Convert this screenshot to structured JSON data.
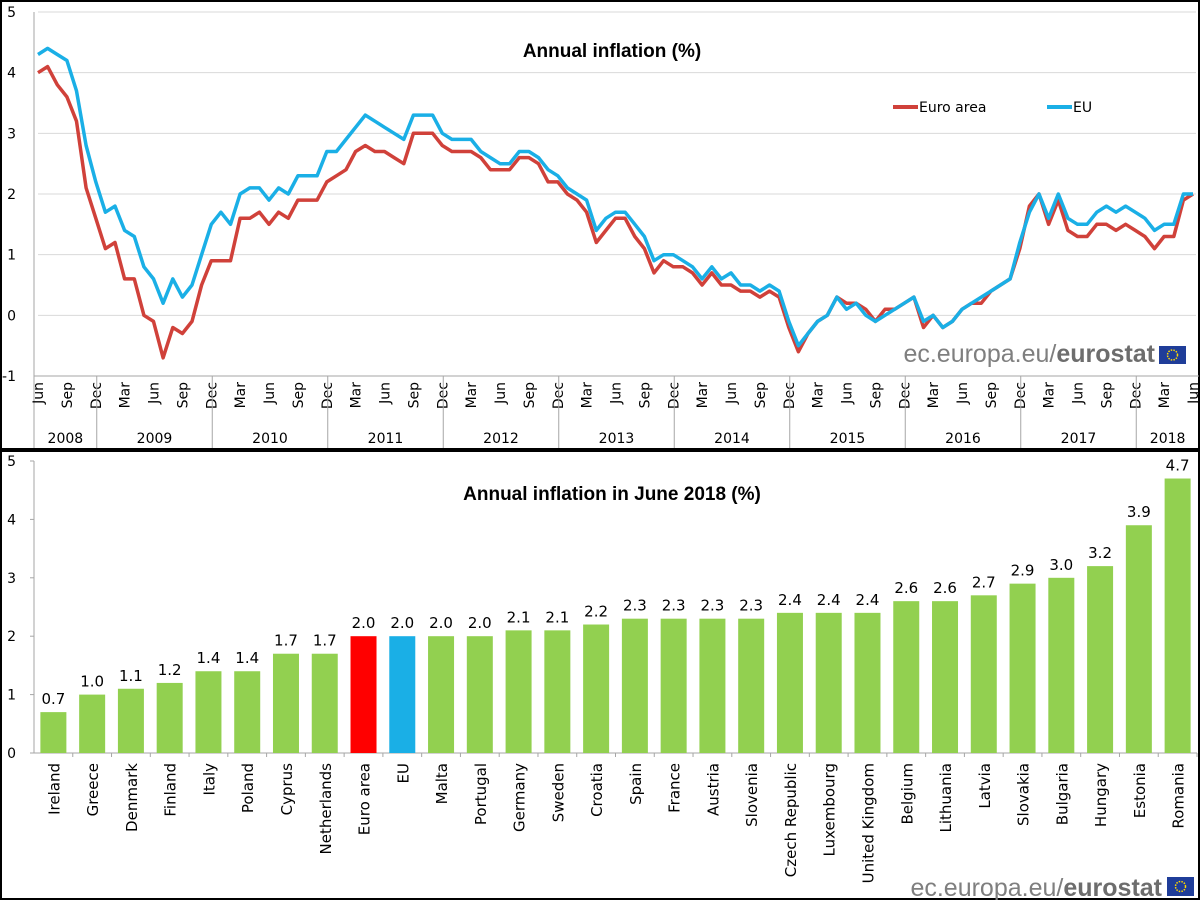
{
  "logo_text": {
    "domain": "ec.europa.eu/",
    "brand": "eurostat"
  },
  "chart_data": [
    {
      "type": "line",
      "title": "Annual inflation (%)",
      "xlabel": "",
      "ylabel": "",
      "ylim": [
        -1,
        5
      ],
      "yticks": [
        "5",
        "4",
        "3",
        "2",
        "1",
        "0",
        "-1"
      ],
      "grid": true,
      "legend": "top-right",
      "x_range": [
        "2008-06",
        "2018-06"
      ],
      "frequency": "monthly",
      "month_ticks": [
        "Jun",
        "Sep",
        "Dec",
        "Mar",
        "Jun",
        "Sep",
        "Dec",
        "Mar",
        "Jun",
        "Sep",
        "Dec",
        "Mar",
        "Jun",
        "Sep",
        "Dec",
        "Mar",
        "Jun",
        "Sep",
        "Dec",
        "Mar",
        "Jun",
        "Sep",
        "Dec",
        "Mar",
        "Jun",
        "Sep",
        "Dec",
        "Mar",
        "Jun",
        "Sep",
        "Dec",
        "Mar",
        "Jun",
        "Sep",
        "Dec",
        "Mar",
        "Jun",
        "Sep",
        "Dec",
        "Mar",
        "Jun"
      ],
      "year_labels": [
        "2008",
        "2009",
        "2010",
        "2011",
        "2012",
        "2013",
        "2014",
        "2015",
        "2016",
        "2017",
        "2018"
      ],
      "series": [
        {
          "name": "Euro area",
          "color": "#d0413a",
          "values": [
            4.0,
            4.1,
            3.8,
            3.6,
            3.2,
            2.1,
            1.6,
            1.1,
            1.2,
            0.6,
            0.6,
            0.0,
            -0.1,
            -0.7,
            -0.2,
            -0.3,
            -0.1,
            0.5,
            0.9,
            0.9,
            0.9,
            1.6,
            1.6,
            1.7,
            1.5,
            1.7,
            1.6,
            1.9,
            1.9,
            1.9,
            2.2,
            2.3,
            2.4,
            2.7,
            2.8,
            2.7,
            2.7,
            2.6,
            2.5,
            3.0,
            3.0,
            3.0,
            2.8,
            2.7,
            2.7,
            2.7,
            2.6,
            2.4,
            2.4,
            2.4,
            2.6,
            2.6,
            2.5,
            2.2,
            2.2,
            2.0,
            1.9,
            1.7,
            1.2,
            1.4,
            1.6,
            1.6,
            1.3,
            1.1,
            0.7,
            0.9,
            0.8,
            0.8,
            0.7,
            0.5,
            0.7,
            0.5,
            0.5,
            0.4,
            0.4,
            0.3,
            0.4,
            0.3,
            -0.2,
            -0.6,
            -0.3,
            -0.1,
            0.0,
            0.3,
            0.2,
            0.2,
            0.1,
            -0.1,
            0.1,
            0.1,
            0.2,
            0.3,
            -0.2,
            0.0,
            -0.2,
            -0.1,
            0.1,
            0.2,
            0.2,
            0.4,
            0.5,
            0.6,
            1.1,
            1.8,
            2.0,
            1.5,
            1.9,
            1.4,
            1.3,
            1.3,
            1.5,
            1.5,
            1.4,
            1.5,
            1.4,
            1.3,
            1.1,
            1.3,
            1.3,
            1.9,
            2.0
          ]
        },
        {
          "name": "EU",
          "color": "#1aafe6",
          "values": [
            4.3,
            4.4,
            4.3,
            4.2,
            3.7,
            2.8,
            2.2,
            1.7,
            1.8,
            1.4,
            1.3,
            0.8,
            0.6,
            0.2,
            0.6,
            0.3,
            0.5,
            1.0,
            1.5,
            1.7,
            1.5,
            2.0,
            2.1,
            2.1,
            1.9,
            2.1,
            2.0,
            2.3,
            2.3,
            2.3,
            2.7,
            2.7,
            2.9,
            3.1,
            3.3,
            3.2,
            3.1,
            3.0,
            2.9,
            3.3,
            3.3,
            3.3,
            3.0,
            2.9,
            2.9,
            2.9,
            2.7,
            2.6,
            2.5,
            2.5,
            2.7,
            2.7,
            2.6,
            2.4,
            2.3,
            2.1,
            2.0,
            1.9,
            1.4,
            1.6,
            1.7,
            1.7,
            1.5,
            1.3,
            0.9,
            1.0,
            1.0,
            0.9,
            0.8,
            0.6,
            0.8,
            0.6,
            0.7,
            0.5,
            0.5,
            0.4,
            0.5,
            0.4,
            -0.1,
            -0.5,
            -0.3,
            -0.1,
            0.0,
            0.3,
            0.1,
            0.2,
            0.0,
            -0.1,
            0.0,
            0.1,
            0.2,
            0.3,
            -0.1,
            0.0,
            -0.2,
            -0.1,
            0.1,
            0.2,
            0.3,
            0.4,
            0.5,
            0.6,
            1.2,
            1.7,
            2.0,
            1.6,
            2.0,
            1.6,
            1.5,
            1.5,
            1.7,
            1.8,
            1.7,
            1.8,
            1.7,
            1.6,
            1.4,
            1.5,
            1.5,
            2.0,
            2.0
          ]
        }
      ]
    },
    {
      "type": "bar",
      "title": "Annual inflation in June 2018 (%)",
      "xlabel": "",
      "ylabel": "",
      "ylim": [
        0,
        5
      ],
      "yticks": [
        "5",
        "4",
        "3",
        "2",
        "1",
        "0"
      ],
      "grid": false,
      "categories": [
        "Ireland",
        "Greece",
        "Denmark",
        "Finland",
        "Italy",
        "Poland",
        "Cyprus",
        "Netherlands",
        "Euro area",
        "EU",
        "Malta",
        "Portugal",
        "Germany",
        "Sweden",
        "Croatia",
        "Spain",
        "France",
        "Austria",
        "Slovenia",
        "Czech Republic",
        "Luxembourg",
        "United Kingdom",
        "Belgium",
        "Lithuania",
        "Latvia",
        "Slovakia",
        "Bulgaria",
        "Hungary",
        "Estonia",
        "Romania"
      ],
      "values": [
        0.7,
        1.0,
        1.1,
        1.2,
        1.4,
        1.4,
        1.7,
        1.7,
        2.0,
        2.0,
        2.0,
        2.0,
        2.1,
        2.1,
        2.2,
        2.3,
        2.3,
        2.3,
        2.3,
        2.4,
        2.4,
        2.4,
        2.6,
        2.6,
        2.7,
        2.9,
        3.0,
        3.2,
        3.9,
        4.7
      ],
      "data_labels": [
        "0.7",
        "1.0",
        "1.1",
        "1.2",
        "1.4",
        "1.4",
        "1.7",
        "1.7",
        "2.0",
        "2.0",
        "2.0",
        "2.0",
        "2.1",
        "2.1",
        "2.2",
        "2.3",
        "2.3",
        "2.3",
        "2.3",
        "2.4",
        "2.4",
        "2.4",
        "2.6",
        "2.6",
        "2.7",
        "2.9",
        "3.0",
        "3.2",
        "3.9",
        "4.7"
      ],
      "colors": {
        "default": "#92d050",
        "Euro area": "#ff0000",
        "EU": "#1aafe6"
      }
    }
  ]
}
